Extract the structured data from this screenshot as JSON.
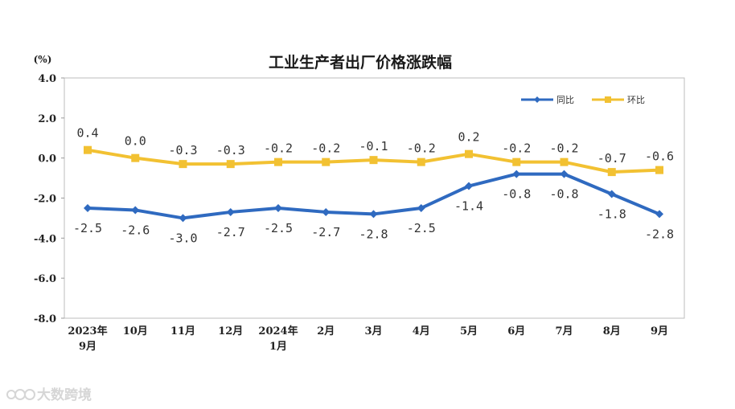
{
  "watermark": "大数跨境",
  "chart_data": {
    "type": "line",
    "title": "工业生产者出厂价格涨跌幅",
    "y_unit": "(%)",
    "ylim": [
      -8.0,
      4.0
    ],
    "yticks": [
      "4.0",
      "2.0",
      "0.0",
      "-2.0",
      "-4.0",
      "-6.0",
      "-8.0"
    ],
    "categories": [
      [
        "2023年",
        "9月"
      ],
      [
        "10月"
      ],
      [
        "11月"
      ],
      [
        "12月"
      ],
      [
        "2024年",
        "1月"
      ],
      [
        "2月"
      ],
      [
        "3月"
      ],
      [
        "4月"
      ],
      [
        "5月"
      ],
      [
        "6月"
      ],
      [
        "7月"
      ],
      [
        "8月"
      ],
      [
        "9月"
      ]
    ],
    "legend_position": "top-right",
    "series": [
      {
        "name": "同比",
        "color": "#2f6ac0",
        "marker": "diamond",
        "values": [
          -2.5,
          -2.6,
          -3.0,
          -2.7,
          -2.5,
          -2.7,
          -2.8,
          -2.5,
          -1.4,
          -0.8,
          -0.8,
          -1.8,
          -2.8
        ],
        "labels": [
          "-2.5",
          "-2.6",
          "-3.0",
          "-2.7",
          "-2.5",
          "-2.7",
          "-2.8",
          "-2.5",
          "-1.4",
          "-0.8",
          "-0.8",
          "-1.8",
          "-2.8"
        ]
      },
      {
        "name": "环比",
        "color": "#f2c132",
        "marker": "square",
        "values": [
          0.4,
          0.0,
          -0.3,
          -0.3,
          -0.2,
          -0.2,
          -0.1,
          -0.2,
          0.2,
          -0.2,
          -0.2,
          -0.7,
          -0.6
        ],
        "labels": [
          "0.4",
          "0.0",
          "-0.3",
          "-0.3",
          "-0.2",
          "-0.2",
          "-0.1",
          "-0.2",
          "0.2",
          "-0.2",
          "-0.2",
          "-0.7",
          "-0.6"
        ]
      }
    ]
  }
}
